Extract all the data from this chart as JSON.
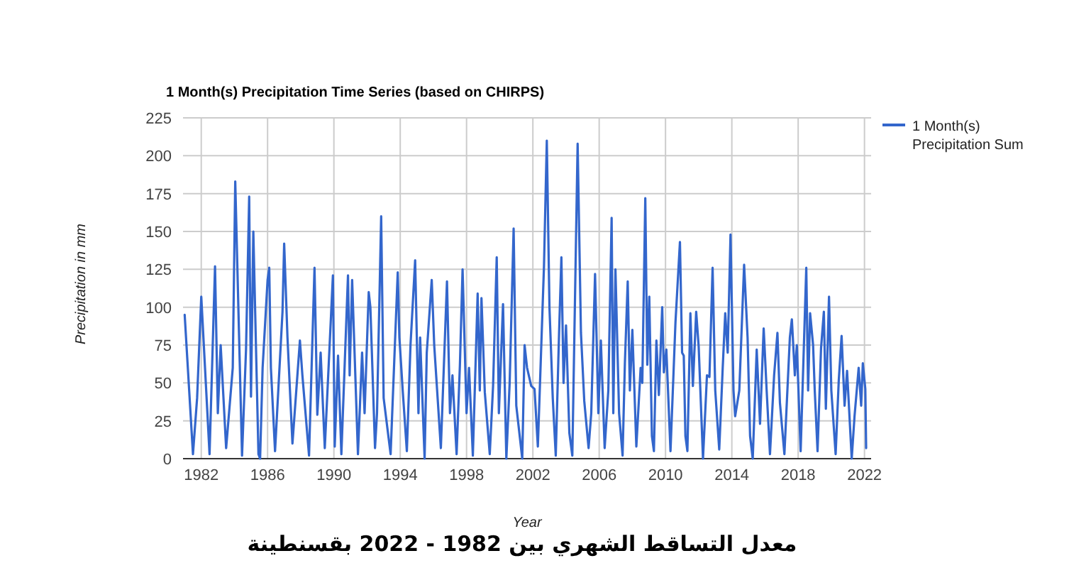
{
  "chart_data": {
    "type": "line",
    "title": "1 Month(s) Precipitation Time Series (based on CHIRPS)",
    "xlabel": "Year",
    "ylabel": "Precipitation in mm",
    "annotations": [
      "معدل التساقط الشهري بين 1982 - 2022 بقسنطينة"
    ],
    "xlim": [
      1980.9,
      2022.4
    ],
    "xticks": [
      1982,
      1986,
      1990,
      1994,
      1998,
      2002,
      2006,
      2010,
      2014,
      2018,
      2022
    ],
    "ylim": [
      0,
      225
    ],
    "yticks": [
      0,
      25,
      50,
      75,
      100,
      125,
      150,
      175,
      200,
      225
    ],
    "grid": true,
    "legend": "right",
    "marker": "none",
    "line_style": "solid",
    "series": [
      {
        "name": "1 Month(s) Precipitation Sum",
        "color": "#3366cc",
        "x": [
          1981.0,
          1981.5,
          1981.75,
          1982.0,
          1982.5,
          1982.83,
          1983.0,
          1983.17,
          1983.5,
          1983.9,
          1984.05,
          1984.46,
          1984.7,
          1984.89,
          1985.0,
          1985.14,
          1985.45,
          1985.55,
          1985.7,
          1986.0,
          1986.1,
          1986.2,
          1986.45,
          1986.9,
          1987.0,
          1987.2,
          1987.5,
          1987.95,
          1988.1,
          1988.5,
          1988.83,
          1989.0,
          1989.2,
          1989.45,
          1989.94,
          1990.05,
          1990.25,
          1990.45,
          1990.85,
          1990.95,
          1991.1,
          1991.45,
          1991.7,
          1991.85,
          1992.1,
          1992.2,
          1992.48,
          1992.6,
          1992.85,
          1993.0,
          1993.42,
          1993.85,
          1993.95,
          1994.15,
          1994.4,
          1994.62,
          1994.9,
          1995.1,
          1995.2,
          1995.47,
          1995.6,
          1995.9,
          1996.05,
          1996.45,
          1996.82,
          1997.0,
          1997.15,
          1997.4,
          1997.6,
          1997.76,
          1998.0,
          1998.15,
          1998.38,
          1998.67,
          1998.8,
          1998.9,
          1999.1,
          1999.4,
          1999.6,
          1999.82,
          1999.95,
          2000.2,
          2000.4,
          2000.6,
          2000.84,
          2001.0,
          2001.36,
          2001.5,
          2001.65,
          2001.9,
          2002.1,
          2002.3,
          2002.67,
          2002.84,
          2003.0,
          2003.2,
          2003.38,
          2003.58,
          2003.72,
          2003.85,
          2004.0,
          2004.2,
          2004.38,
          2004.7,
          2004.9,
          2005.1,
          2005.36,
          2005.52,
          2005.75,
          2005.95,
          2006.1,
          2006.33,
          2006.55,
          2006.75,
          2006.85,
          2006.98,
          2007.2,
          2007.41,
          2007.55,
          2007.72,
          2007.85,
          2008.0,
          2008.24,
          2008.5,
          2008.6,
          2008.78,
          2008.9,
          2009.02,
          2009.18,
          2009.3,
          2009.45,
          2009.6,
          2009.8,
          2009.9,
          2010.05,
          2010.3,
          2010.6,
          2010.87,
          2011.0,
          2011.1,
          2011.2,
          2011.32,
          2011.5,
          2011.65,
          2011.85,
          2012.0,
          2012.26,
          2012.5,
          2012.65,
          2012.84,
          2013.0,
          2013.24,
          2013.45,
          2013.6,
          2013.75,
          2013.92,
          2014.1,
          2014.2,
          2014.45,
          2014.74,
          2014.95,
          2015.1,
          2015.26,
          2015.5,
          2015.7,
          2015.92,
          2016.1,
          2016.3,
          2016.55,
          2016.75,
          2016.9,
          2017.17,
          2017.5,
          2017.62,
          2017.8,
          2017.92,
          2018.15,
          2018.49,
          2018.6,
          2018.72,
          2018.9,
          2019.0,
          2019.17,
          2019.38,
          2019.55,
          2019.67,
          2019.86,
          2020.0,
          2020.26,
          2020.45,
          2020.62,
          2020.8,
          2020.95,
          2021.23,
          2021.4,
          2021.65,
          2021.8,
          2021.9,
          2022.05,
          2022.1
        ],
        "values": [
          95,
          3,
          40,
          107,
          3,
          127,
          30,
          75,
          7,
          60,
          183,
          2,
          72,
          173,
          41,
          150,
          3,
          0,
          60,
          118,
          126,
          60,
          5,
          97,
          142,
          80,
          10,
          78,
          55,
          2,
          126,
          29,
          70,
          7,
          121,
          8,
          68,
          3,
          121,
          55,
          118,
          3,
          70,
          30,
          110,
          100,
          7,
          30,
          160,
          40,
          3,
          123,
          80,
          45,
          5,
          75,
          131,
          30,
          80,
          0,
          70,
          118,
          75,
          7,
          117,
          30,
          55,
          3,
          62,
          125,
          30,
          60,
          2,
          109,
          45,
          106,
          44,
          3,
          48,
          133,
          30,
          102,
          0,
          50,
          152,
          35,
          0,
          75,
          60,
          48,
          46,
          8,
          127,
          210,
          100,
          40,
          2,
          83,
          133,
          50,
          88,
          17,
          2,
          208,
          83,
          38,
          7,
          30,
          122,
          30,
          78,
          7,
          45,
          159,
          30,
          125,
          30,
          2,
          63,
          117,
          45,
          85,
          8,
          60,
          50,
          172,
          62,
          107,
          15,
          5,
          78,
          42,
          100,
          57,
          72,
          5,
          90,
          143,
          70,
          68,
          15,
          5,
          96,
          48,
          97,
          74,
          0,
          55,
          54,
          126,
          45,
          6,
          60,
          96,
          70,
          148,
          45,
          28,
          45,
          128,
          80,
          15,
          0,
          72,
          23,
          86,
          45,
          3,
          55,
          83,
          37,
          3,
          80,
          92,
          55,
          75,
          5,
          126,
          45,
          96,
          75,
          45,
          5,
          73,
          97,
          33,
          107,
          45,
          3,
          52,
          81,
          35,
          58,
          0,
          28,
          60,
          35,
          63,
          46,
          7
        ]
      }
    ]
  }
}
